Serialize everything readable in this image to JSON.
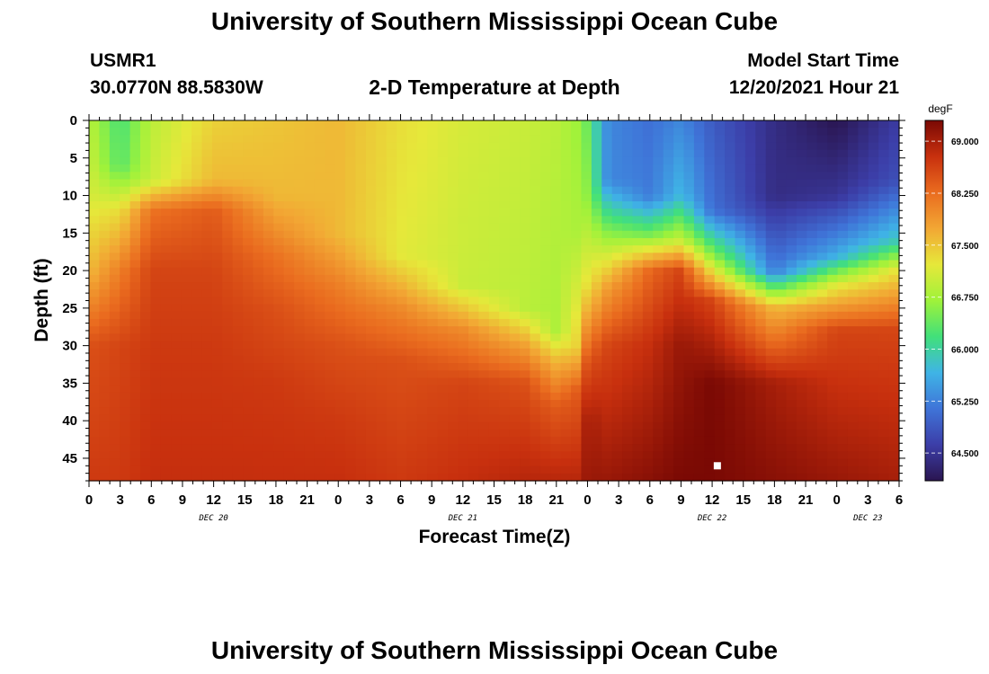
{
  "header": {
    "title": "University of Southern Mississippi Ocean Cube",
    "station_id": "USMR1",
    "coords": "30.0770N  88.5830W",
    "subtitle": "2-D Temperature at Depth",
    "model_label": "Model Start Time",
    "model_time": "12/20/2021 Hour 21"
  },
  "footer": {
    "title": "University of Southern Mississippi Ocean Cube"
  },
  "colors": {
    "colormap": [
      "#2a1550",
      "#3c3ea8",
      "#3f74d8",
      "#3fb4e6",
      "#41e07a",
      "#9ff23a",
      "#e6e83a",
      "#f2a734",
      "#ea6c1f",
      "#c8300e",
      "#7a0904"
    ],
    "marker": "#ffffff"
  },
  "chart_data": {
    "type": "heatmap",
    "title": "2-D Temperature at Depth",
    "xlabel": "Forecast Time(Z)",
    "ylabel": "Depth (ft)",
    "unit": "degF",
    "x_range_hours": [
      0,
      78
    ],
    "y_range_ft": [
      0,
      48
    ],
    "y_reversed": true,
    "x_ticks": [
      "0",
      "3",
      "6",
      "9",
      "12",
      "15",
      "18",
      "21",
      "0",
      "3",
      "6",
      "9",
      "12",
      "15",
      "18",
      "21",
      "0",
      "3",
      "6",
      "9",
      "12",
      "15",
      "18",
      "21",
      "0",
      "3",
      "6"
    ],
    "x_tick_hours": [
      0,
      3,
      6,
      9,
      12,
      15,
      18,
      21,
      24,
      27,
      30,
      33,
      36,
      39,
      42,
      45,
      48,
      51,
      54,
      57,
      60,
      63,
      66,
      69,
      72,
      75,
      78
    ],
    "date_labels": [
      {
        "label": "DEC 20",
        "hour": 12
      },
      {
        "label": "DEC 21",
        "hour": 36
      },
      {
        "label": "DEC 22",
        "hour": 60
      },
      {
        "label": "DEC 23",
        "hour": 75
      }
    ],
    "y_ticks": [
      0,
      5,
      10,
      15,
      20,
      25,
      30,
      35,
      40,
      45
    ],
    "colorbar": {
      "range": [
        64.1,
        69.3
      ],
      "tick_values": [
        69.0,
        68.25,
        67.5,
        66.75,
        66.0,
        65.25,
        64.5
      ],
      "tick_labels": [
        "69.000",
        "68.250",
        "67.500",
        "66.750",
        "66.000",
        "65.250",
        "64.500"
      ]
    },
    "depth_profiles": [
      {
        "hour": 0,
        "depths": [
          0,
          10,
          20,
          30,
          40,
          48
        ],
        "temps": [
          66.9,
          67.1,
          67.6,
          68.5,
          68.6,
          68.7
        ]
      },
      {
        "hour": 3,
        "depths": [
          0,
          6,
          12,
          20,
          30,
          48
        ],
        "temps": [
          66.2,
          66.3,
          67.3,
          68.1,
          68.6,
          68.7
        ]
      },
      {
        "hour": 6,
        "depths": [
          0,
          8,
          12,
          20,
          30,
          48
        ],
        "temps": [
          66.9,
          67.0,
          68.2,
          68.6,
          68.7,
          68.8
        ]
      },
      {
        "hour": 12,
        "depths": [
          0,
          8,
          12,
          20,
          30,
          48
        ],
        "temps": [
          67.4,
          67.6,
          68.4,
          68.6,
          68.7,
          68.8
        ]
      },
      {
        "hour": 18,
        "depths": [
          0,
          10,
          18,
          25,
          35,
          48
        ],
        "temps": [
          67.5,
          67.6,
          68.2,
          68.5,
          68.7,
          68.8
        ]
      },
      {
        "hour": 24,
        "depths": [
          0,
          15,
          22,
          30,
          40,
          48
        ],
        "temps": [
          67.6,
          67.6,
          68.1,
          68.5,
          68.7,
          68.8
        ]
      },
      {
        "hour": 30,
        "depths": [
          0,
          18,
          25,
          32,
          48
        ],
        "temps": [
          67.3,
          67.2,
          68.0,
          68.5,
          68.7
        ]
      },
      {
        "hour": 36,
        "depths": [
          0,
          22,
          28,
          35,
          48
        ],
        "temps": [
          67.1,
          67.0,
          68.0,
          68.6,
          68.8
        ]
      },
      {
        "hour": 42,
        "depths": [
          0,
          25,
          30,
          35,
          48
        ],
        "temps": [
          67.0,
          66.9,
          67.8,
          68.5,
          68.9
        ]
      },
      {
        "hour": 45,
        "depths": [
          0,
          28,
          32,
          38,
          48
        ],
        "temps": [
          66.9,
          66.8,
          67.6,
          68.4,
          68.9
        ]
      },
      {
        "hour": 47,
        "depths": [
          0,
          15,
          30,
          36,
          48
        ],
        "temps": [
          66.7,
          66.8,
          67.4,
          68.4,
          68.9
        ]
      },
      {
        "hour": 48,
        "depths": [
          0,
          10,
          22,
          32,
          40,
          48
        ],
        "temps": [
          66.4,
          66.6,
          67.3,
          68.5,
          69.0,
          69.1
        ]
      },
      {
        "hour": 50,
        "depths": [
          0,
          8,
          14,
          22,
          30,
          48
        ],
        "temps": [
          65.3,
          65.3,
          66.4,
          67.8,
          68.6,
          69.1
        ]
      },
      {
        "hour": 54,
        "depths": [
          0,
          10,
          15,
          20,
          30,
          48
        ],
        "temps": [
          65.1,
          65.2,
          66.4,
          68.3,
          68.8,
          69.2
        ]
      },
      {
        "hour": 57,
        "depths": [
          0,
          10,
          16,
          20,
          30,
          48
        ],
        "temps": [
          65.3,
          65.7,
          67.0,
          68.6,
          69.1,
          69.3
        ]
      },
      {
        "hour": 60,
        "depths": [
          0,
          12,
          18,
          24,
          35,
          48
        ],
        "temps": [
          64.9,
          65.1,
          66.6,
          68.6,
          69.3,
          69.3
        ]
      },
      {
        "hour": 66,
        "depths": [
          0,
          10,
          20,
          25,
          35,
          48
        ],
        "temps": [
          64.4,
          64.4,
          65.2,
          67.6,
          69.0,
          69.2
        ]
      },
      {
        "hour": 72,
        "depths": [
          0,
          10,
          18,
          22,
          28,
          48
        ],
        "temps": [
          64.1,
          64.5,
          65.6,
          67.2,
          68.6,
          69.1
        ]
      },
      {
        "hour": 78,
        "depths": [
          0,
          8,
          16,
          20,
          28,
          48
        ],
        "temps": [
          64.6,
          64.8,
          65.9,
          67.3,
          68.6,
          69.0
        ]
      }
    ],
    "marker": {
      "hour": 60.5,
      "depth": 46
    }
  }
}
